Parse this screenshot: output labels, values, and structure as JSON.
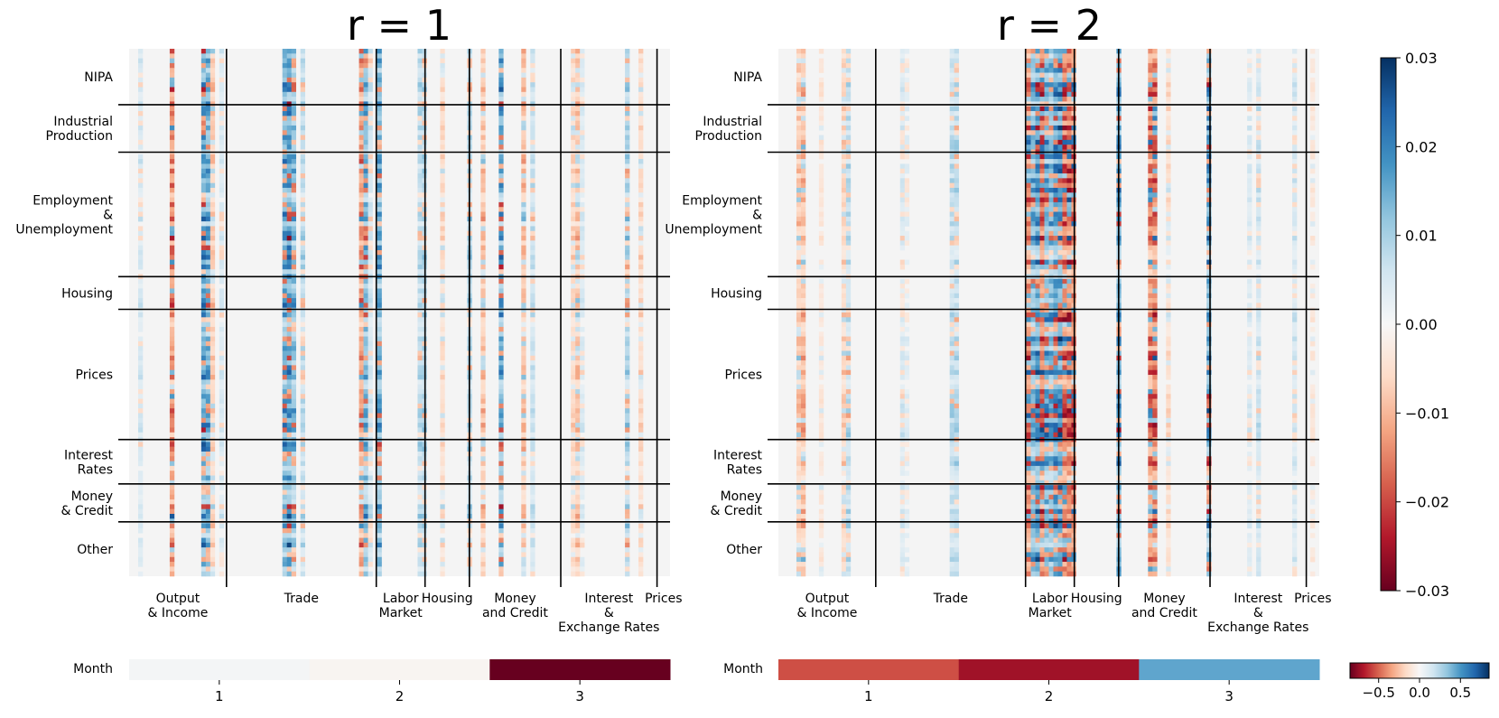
{
  "chart_data": [
    {
      "type": "heatmap",
      "title": "r = 1",
      "row_groups": [
        "NIPA",
        "Industrial\nProduction",
        "Employment\n&\nUnemployment",
        "Housing",
        "Prices",
        "Interest\nRates",
        "Money\n& Credit",
        "Other"
      ],
      "row_group_fractions": [
        0.106,
        0.09,
        0.236,
        0.062,
        0.247,
        0.084,
        0.072,
        0.103
      ],
      "col_groups": [
        "Output\n& Income",
        "Trade",
        "Labor\nMarket",
        "Housing",
        "Money\nand Credit",
        "Interest\n&\nExchange Rates",
        "Prices"
      ],
      "col_group_fractions": [
        0.18,
        0.277,
        0.09,
        0.082,
        0.169,
        0.178,
        0.024
      ],
      "month_bar": {
        "label": "Month",
        "ticks": [
          "1",
          "2",
          "3"
        ],
        "values": [
          0.02,
          -0.02,
          -0.85
        ]
      }
    },
    {
      "type": "heatmap",
      "title": "r = 2",
      "row_groups": [
        "NIPA",
        "Industrial\nProduction",
        "Employment\n&\nUnemployment",
        "Housing",
        "Prices",
        "Interest\nRates",
        "Money\n& Credit",
        "Other"
      ],
      "row_group_fractions": [
        0.106,
        0.09,
        0.236,
        0.062,
        0.247,
        0.084,
        0.072,
        0.103
      ],
      "col_groups": [
        "Output\n& Income",
        "Trade",
        "Labor\nMarket",
        "Housing",
        "Money\nand Credit",
        "Interest\n&\nExchange Rates",
        "Prices"
      ],
      "col_group_fractions": [
        0.18,
        0.277,
        0.09,
        0.082,
        0.169,
        0.178,
        0.024
      ],
      "month_bar": {
        "label": "Month",
        "ticks": [
          "1",
          "2",
          "3"
        ],
        "values": [
          -0.55,
          -0.72,
          0.45
        ]
      }
    }
  ],
  "colorbar_main": {
    "min": -0.03,
    "max": 0.03,
    "ticks": [
      "0.03",
      "0.02",
      "0.01",
      "0.00",
      "−0.01",
      "−0.02",
      "−0.03"
    ]
  },
  "colorbar_month": {
    "min": -0.85,
    "max": 0.85,
    "ticks": [
      "−0.5",
      "0.0",
      "0.5"
    ]
  },
  "colors": {
    "neg": "#67001f",
    "pos": "#053061",
    "mid": "#f7f7f7"
  }
}
